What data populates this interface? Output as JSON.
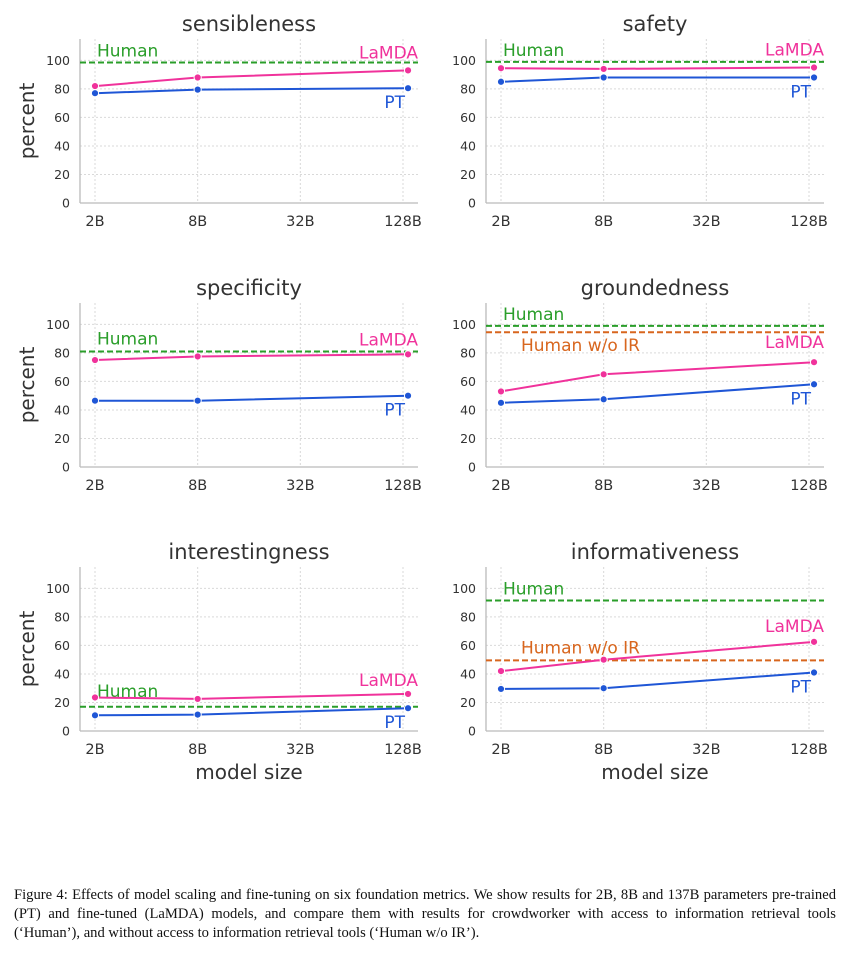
{
  "figure": {
    "caption": "Figure 4: Effects of model scaling and fine-tuning on six foundation metrics. We show results for 2B, 8B and 137B parameters pre-trained (PT) and fine-tuned (LaMDA) models, and compare them with results for crowdworker with access to information retrieval tools (‘Human’), and without access to information retrieval tools (‘Human w/o IR’)."
  },
  "colors": {
    "lamda": "#f0329b",
    "pt": "#1f56d6",
    "human": "#2a9e2a",
    "human_wo_ir": "#d8661e",
    "text": "#333333",
    "grid": "#d9d9d9",
    "axis": "#bbbbbb"
  },
  "chart_data": [
    {
      "type": "line",
      "title": "sensibleness",
      "ylabel": "percent",
      "xlabel": "",
      "categories": [
        "2B",
        "8B",
        "32B",
        "128B"
      ],
      "x": [
        2,
        8,
        137
      ],
      "ylim": [
        0,
        115
      ],
      "yticks": [
        0,
        20,
        40,
        60,
        80,
        100
      ],
      "grid": true,
      "series": [
        {
          "name": "LaMDA",
          "values": [
            82,
            88,
            93
          ]
        },
        {
          "name": "PT",
          "values": [
            77,
            79.5,
            80.5
          ]
        }
      ],
      "reference_lines": [
        {
          "name": "Human",
          "value": 98.5
        }
      ]
    },
    {
      "type": "line",
      "title": "safety",
      "ylabel": "",
      "xlabel": "",
      "categories": [
        "2B",
        "8B",
        "32B",
        "128B"
      ],
      "x": [
        2,
        8,
        137
      ],
      "ylim": [
        0,
        115
      ],
      "yticks": [
        0,
        20,
        40,
        60,
        80,
        100
      ],
      "grid": true,
      "series": [
        {
          "name": "LaMDA",
          "values": [
            94.5,
            94,
            95
          ]
        },
        {
          "name": "PT",
          "values": [
            85,
            88,
            88
          ]
        }
      ],
      "reference_lines": [
        {
          "name": "Human",
          "value": 99
        }
      ]
    },
    {
      "type": "line",
      "title": "specificity",
      "ylabel": "percent",
      "xlabel": "",
      "categories": [
        "2B",
        "8B",
        "32B",
        "128B"
      ],
      "x": [
        2,
        8,
        137
      ],
      "ylim": [
        0,
        115
      ],
      "yticks": [
        0,
        20,
        40,
        60,
        80,
        100
      ],
      "grid": true,
      "series": [
        {
          "name": "LaMDA",
          "values": [
            75,
            77.5,
            79
          ]
        },
        {
          "name": "PT",
          "values": [
            46.5,
            46.5,
            50
          ]
        }
      ],
      "reference_lines": [
        {
          "name": "Human",
          "value": 81
        }
      ]
    },
    {
      "type": "line",
      "title": "groundedness",
      "ylabel": "",
      "xlabel": "",
      "categories": [
        "2B",
        "8B",
        "32B",
        "128B"
      ],
      "x": [
        2,
        8,
        137
      ],
      "ylim": [
        0,
        115
      ],
      "yticks": [
        0,
        20,
        40,
        60,
        80,
        100
      ],
      "grid": true,
      "series": [
        {
          "name": "LaMDA",
          "values": [
            53,
            65,
            73.5
          ]
        },
        {
          "name": "PT",
          "values": [
            45,
            47.5,
            58
          ]
        }
      ],
      "reference_lines": [
        {
          "name": "Human",
          "value": 99
        },
        {
          "name": "Human w/o IR",
          "value": 94.5
        }
      ]
    },
    {
      "type": "line",
      "title": "interestingness",
      "ylabel": "percent",
      "xlabel": "model size",
      "categories": [
        "2B",
        "8B",
        "32B",
        "128B"
      ],
      "x": [
        2,
        8,
        137
      ],
      "ylim": [
        0,
        115
      ],
      "yticks": [
        0,
        20,
        40,
        60,
        80,
        100
      ],
      "grid": true,
      "series": [
        {
          "name": "LaMDA",
          "values": [
            23.5,
            22.5,
            26
          ]
        },
        {
          "name": "PT",
          "values": [
            11,
            11.5,
            16
          ]
        }
      ],
      "reference_lines": [
        {
          "name": "Human",
          "value": 17
        }
      ]
    },
    {
      "type": "line",
      "title": "informativeness",
      "ylabel": "",
      "xlabel": "model size",
      "categories": [
        "2B",
        "8B",
        "32B",
        "128B"
      ],
      "x": [
        2,
        8,
        137
      ],
      "ylim": [
        0,
        115
      ],
      "yticks": [
        0,
        20,
        40,
        60,
        80,
        100
      ],
      "grid": true,
      "series": [
        {
          "name": "LaMDA",
          "values": [
            42,
            50,
            62.5
          ]
        },
        {
          "name": "PT",
          "values": [
            29.5,
            30,
            41
          ]
        }
      ],
      "reference_lines": [
        {
          "name": "Human",
          "value": 91.5
        },
        {
          "name": "Human w/o IR",
          "value": 49.5
        }
      ]
    }
  ]
}
